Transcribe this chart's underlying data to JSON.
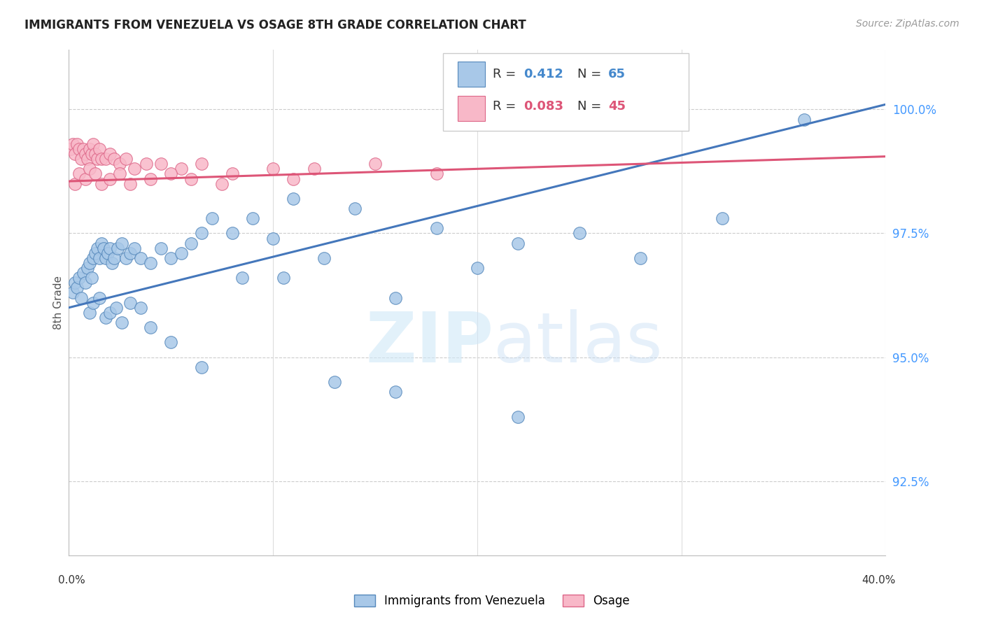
{
  "title": "IMMIGRANTS FROM VENEZUELA VS OSAGE 8TH GRADE CORRELATION CHART",
  "source": "Source: ZipAtlas.com",
  "ylabel": "8th Grade",
  "yaxis_values": [
    92.5,
    95.0,
    97.5,
    100.0
  ],
  "xmin": 0.0,
  "xmax": 40.0,
  "ymin": 91.0,
  "ymax": 101.2,
  "blue_color": "#a8c8e8",
  "pink_color": "#f8b8c8",
  "blue_edge_color": "#5588bb",
  "pink_edge_color": "#dd6688",
  "blue_line_color": "#4477bb",
  "pink_line_color": "#dd5577",
  "legend_label_blue": "Immigrants from Venezuela",
  "legend_label_pink": "Osage",
  "blue_trend": [
    0.0,
    96.0,
    40.0,
    100.1
  ],
  "pink_trend": [
    0.0,
    98.55,
    40.0,
    99.05
  ],
  "blue_x": [
    0.2,
    0.3,
    0.4,
    0.5,
    0.6,
    0.7,
    0.8,
    0.9,
    1.0,
    1.1,
    1.2,
    1.3,
    1.4,
    1.5,
    1.6,
    1.7,
    1.8,
    1.9,
    2.0,
    2.1,
    2.2,
    2.4,
    2.6,
    2.8,
    3.0,
    3.2,
    3.5,
    4.0,
    4.5,
    5.0,
    5.5,
    6.0,
    6.5,
    7.0,
    8.0,
    9.0,
    10.0,
    11.0,
    12.5,
    14.0,
    16.0,
    18.0,
    20.0,
    22.0,
    25.0,
    28.0,
    32.0,
    36.0,
    1.0,
    1.2,
    1.5,
    1.8,
    2.0,
    2.3,
    2.6,
    3.0,
    3.5,
    4.0,
    5.0,
    6.5,
    8.5,
    10.5,
    13.0,
    16.0,
    22.0
  ],
  "blue_y": [
    96.3,
    96.5,
    96.4,
    96.6,
    96.2,
    96.7,
    96.5,
    96.8,
    96.9,
    96.6,
    97.0,
    97.1,
    97.2,
    97.0,
    97.3,
    97.2,
    97.0,
    97.1,
    97.2,
    96.9,
    97.0,
    97.2,
    97.3,
    97.0,
    97.1,
    97.2,
    97.0,
    96.9,
    97.2,
    97.0,
    97.1,
    97.3,
    97.5,
    97.8,
    97.5,
    97.8,
    97.4,
    98.2,
    97.0,
    98.0,
    96.2,
    97.6,
    96.8,
    97.3,
    97.5,
    97.0,
    97.8,
    99.8,
    95.9,
    96.1,
    96.2,
    95.8,
    95.9,
    96.0,
    95.7,
    96.1,
    96.0,
    95.6,
    95.3,
    94.8,
    96.6,
    96.6,
    94.5,
    94.3,
    93.8
  ],
  "pink_x": [
    0.1,
    0.2,
    0.3,
    0.4,
    0.5,
    0.6,
    0.7,
    0.8,
    0.9,
    1.0,
    1.1,
    1.2,
    1.3,
    1.4,
    1.5,
    1.6,
    1.8,
    2.0,
    2.2,
    2.5,
    2.8,
    3.2,
    3.8,
    4.5,
    5.5,
    6.5,
    8.0,
    10.0,
    12.0,
    15.0,
    0.3,
    0.5,
    0.8,
    1.0,
    1.3,
    1.6,
    2.0,
    2.5,
    3.0,
    4.0,
    5.0,
    6.0,
    7.5,
    11.0,
    18.0
  ],
  "pink_y": [
    99.2,
    99.3,
    99.1,
    99.3,
    99.2,
    99.0,
    99.2,
    99.1,
    99.0,
    99.2,
    99.1,
    99.3,
    99.1,
    99.0,
    99.2,
    99.0,
    99.0,
    99.1,
    99.0,
    98.9,
    99.0,
    98.8,
    98.9,
    98.9,
    98.8,
    98.9,
    98.7,
    98.8,
    98.8,
    98.9,
    98.5,
    98.7,
    98.6,
    98.8,
    98.7,
    98.5,
    98.6,
    98.7,
    98.5,
    98.6,
    98.7,
    98.6,
    98.5,
    98.6,
    98.7
  ]
}
